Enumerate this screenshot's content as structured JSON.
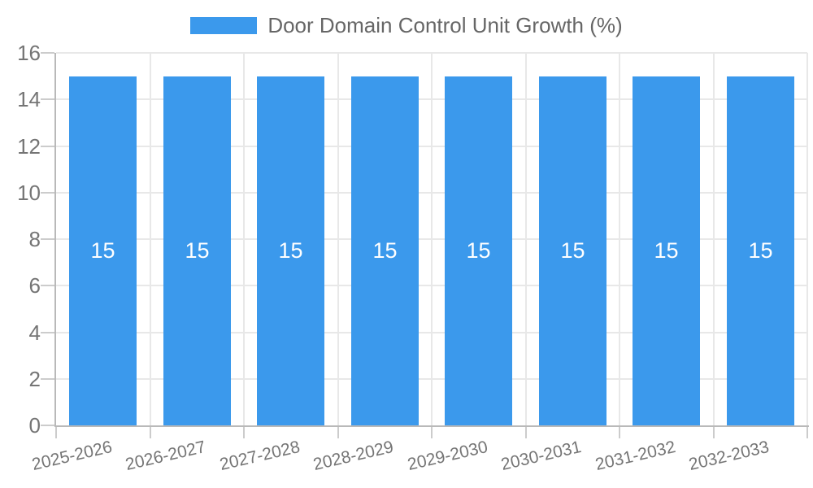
{
  "chart_data": {
    "type": "bar",
    "title": "Door Domain Control Unit Growth (%)",
    "legend": {
      "position": "top",
      "items": [
        {
          "label": "Door Domain Control Unit Growth (%)",
          "color": "#3b99ec"
        }
      ]
    },
    "categories": [
      "2025-2026",
      "2026-2027",
      "2027-2028",
      "2028-2029",
      "2029-2030",
      "2030-2031",
      "2031-2032",
      "2032-2033"
    ],
    "series": [
      {
        "name": "Door Domain Control Unit Growth (%)",
        "values": [
          15,
          15,
          15,
          15,
          15,
          15,
          15,
          15
        ]
      }
    ],
    "data_labels": {
      "show": true,
      "position": "center",
      "text": "15"
    },
    "xlabel": "",
    "ylabel": "",
    "ylim": [
      0,
      16
    ],
    "yticks": [
      0,
      2,
      4,
      6,
      8,
      10,
      12,
      14,
      16
    ],
    "grid": {
      "horizontal": true,
      "vertical": true
    },
    "x_label_rotation_deg": -13,
    "colors": {
      "bar": "#3b99ec",
      "grid": "#e8e8e8",
      "axis": "#b9b9b9",
      "tick": "#cccccc",
      "axis_text": "#757575",
      "legend_text": "#666666",
      "data_label_text": "#ffffff",
      "background": "#ffffff"
    }
  }
}
